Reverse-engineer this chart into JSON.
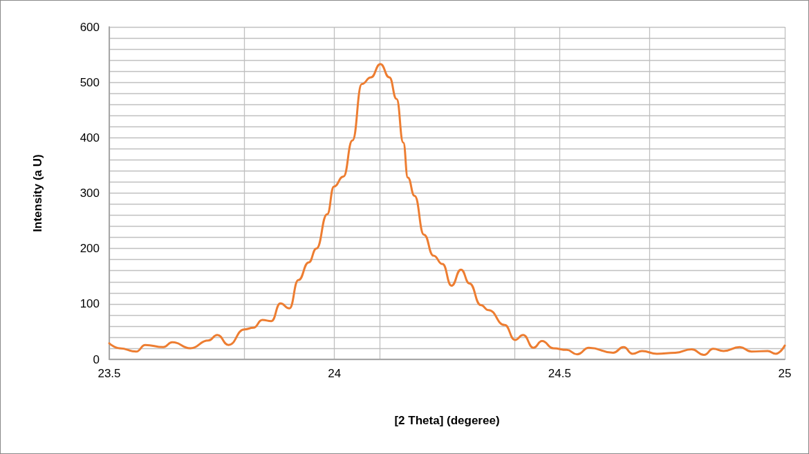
{
  "chart_data": {
    "type": "line",
    "xlabel": "[2 Theta] (degeree)",
    "ylabel": "Intensity (a U)",
    "xlim": [
      23.5,
      25
    ],
    "ylim": [
      0,
      600
    ],
    "xticks": [
      23.5,
      {
        "value": 23.8,
        "label": null
      },
      24,
      {
        "value": 24.1,
        "label": null
      },
      {
        "value": 24.4,
        "label": null
      },
      24.5,
      {
        "value": 24.7,
        "label": null
      },
      25
    ],
    "yticks": [
      0,
      {
        "value": 20,
        "label": null
      },
      {
        "value": 40,
        "label": null
      },
      {
        "value": 60,
        "label": null
      },
      {
        "value": 80,
        "label": null
      },
      100,
      {
        "value": 120,
        "label": null
      },
      {
        "value": 140,
        "label": null
      },
      {
        "value": 160,
        "label": null
      },
      {
        "value": 180,
        "label": null
      },
      200,
      {
        "value": 220,
        "label": null
      },
      {
        "value": 240,
        "label": null
      },
      {
        "value": 260,
        "label": null
      },
      {
        "value": 280,
        "label": null
      },
      300,
      {
        "value": 320,
        "label": null
      },
      {
        "value": 340,
        "label": null
      },
      {
        "value": 360,
        "label": null
      },
      {
        "value": 380,
        "label": null
      },
      400,
      {
        "value": 420,
        "label": null
      },
      {
        "value": 440,
        "label": null
      },
      {
        "value": 460,
        "label": null
      },
      {
        "value": 480,
        "label": null
      },
      500,
      {
        "value": 520,
        "label": null
      },
      {
        "value": 540,
        "label": null
      },
      {
        "value": 560,
        "label": null
      },
      {
        "value": 580,
        "label": null
      },
      600
    ],
    "grid": true,
    "marker": "none",
    "line_style": "solid",
    "series": [
      {
        "color": "#ed7d31",
        "x": [
          23.5,
          23.523,
          23.56,
          23.58,
          23.62,
          23.64,
          23.68,
          23.72,
          23.74,
          23.765,
          23.8,
          23.82,
          23.84,
          23.86,
          23.88,
          23.9,
          23.92,
          23.943,
          23.96,
          23.984,
          23.999,
          24.02,
          24.04,
          24.061,
          24.081,
          24.102,
          24.122,
          24.138,
          24.153,
          24.163,
          24.178,
          24.199,
          24.22,
          24.24,
          24.26,
          24.281,
          24.3,
          24.325,
          24.342,
          24.378,
          24.401,
          24.419,
          24.442,
          24.461,
          24.486,
          24.516,
          24.539,
          24.565,
          24.619,
          24.642,
          24.662,
          24.683,
          24.716,
          24.757,
          24.793,
          24.821,
          24.841,
          24.864,
          24.9,
          24.926,
          24.962,
          24.98,
          25
        ],
        "values": [
          29,
          20,
          14,
          26,
          22,
          31,
          20,
          34,
          44,
          26,
          54,
          57,
          71,
          69,
          101,
          92,
          143,
          175,
          200,
          262,
          312,
          330,
          395,
          497,
          509,
          533,
          509,
          470,
          391,
          328,
          295,
          225,
          187,
          172,
          133,
          162,
          137,
          98,
          89,
          62,
          35,
          44,
          21,
          33,
          20,
          17,
          9,
          21,
          12,
          22,
          10,
          15,
          10,
          12,
          18,
          8,
          19,
          15,
          22,
          14,
          15,
          10,
          25
        ]
      }
    ]
  }
}
